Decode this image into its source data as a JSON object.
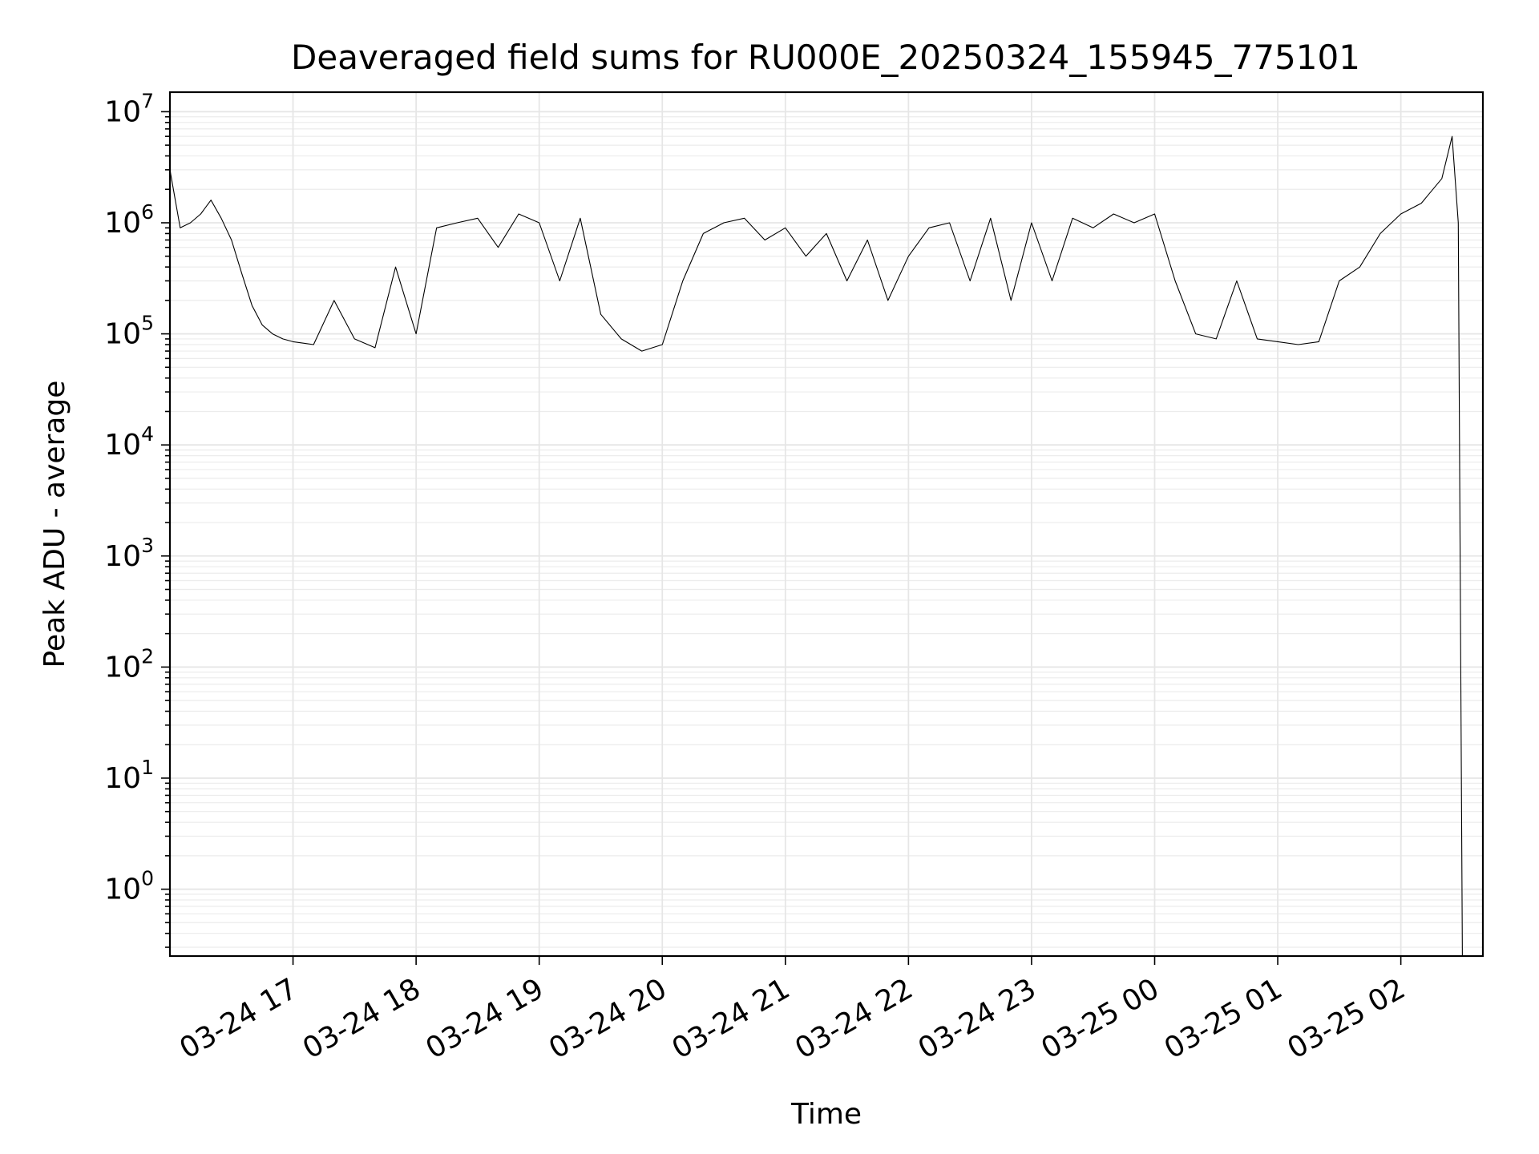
{
  "chart_data": {
    "type": "line",
    "title": "Deaveraged field sums for RU000E_20250324_155945_775101",
    "xlabel": "Time",
    "ylabel": "Peak ADU - average",
    "yscale": "log",
    "ylim": [
      0.25,
      15000000
    ],
    "xlim": [
      "2025-03-24 16:00",
      "2025-03-25 02:40"
    ],
    "grid": true,
    "grid_minor": true,
    "x_ticks": [
      {
        "value": "2025-03-24 17:00",
        "label": "03-24 17"
      },
      {
        "value": "2025-03-24 18:00",
        "label": "03-24 18"
      },
      {
        "value": "2025-03-24 19:00",
        "label": "03-24 19"
      },
      {
        "value": "2025-03-24 20:00",
        "label": "03-24 20"
      },
      {
        "value": "2025-03-24 21:00",
        "label": "03-24 21"
      },
      {
        "value": "2025-03-24 22:00",
        "label": "03-24 22"
      },
      {
        "value": "2025-03-24 23:00",
        "label": "03-24 23"
      },
      {
        "value": "2025-03-25 00:00",
        "label": "03-25 00"
      },
      {
        "value": "2025-03-25 01:00",
        "label": "03-25 01"
      },
      {
        "value": "2025-03-25 02:00",
        "label": "03-25 02"
      }
    ],
    "y_ticks": [
      {
        "value": 1,
        "base": "10",
        "exp": "0"
      },
      {
        "value": 10,
        "base": "10",
        "exp": "1"
      },
      {
        "value": 100,
        "base": "10",
        "exp": "2"
      },
      {
        "value": 1000,
        "base": "10",
        "exp": "3"
      },
      {
        "value": 10000,
        "base": "10",
        "exp": "4"
      },
      {
        "value": 100000,
        "base": "10",
        "exp": "5"
      },
      {
        "value": 1000000,
        "base": "10",
        "exp": "6"
      },
      {
        "value": 10000000,
        "base": "10",
        "exp": "7"
      }
    ],
    "series": [
      {
        "color": "#000000",
        "x": [
          "2025-03-24 16:00",
          "2025-03-24 16:05",
          "2025-03-24 16:10",
          "2025-03-24 16:15",
          "2025-03-24 16:20",
          "2025-03-24 16:25",
          "2025-03-24 16:30",
          "2025-03-24 16:35",
          "2025-03-24 16:40",
          "2025-03-24 16:45",
          "2025-03-24 16:50",
          "2025-03-24 16:55",
          "2025-03-24 17:00",
          "2025-03-24 17:10",
          "2025-03-24 17:20",
          "2025-03-24 17:30",
          "2025-03-24 17:40",
          "2025-03-24 17:50",
          "2025-03-24 18:00",
          "2025-03-24 18:10",
          "2025-03-24 18:20",
          "2025-03-24 18:30",
          "2025-03-24 18:40",
          "2025-03-24 18:50",
          "2025-03-24 19:00",
          "2025-03-24 19:10",
          "2025-03-24 19:20",
          "2025-03-24 19:30",
          "2025-03-24 19:40",
          "2025-03-24 19:50",
          "2025-03-24 20:00",
          "2025-03-24 20:10",
          "2025-03-24 20:20",
          "2025-03-24 20:30",
          "2025-03-24 20:40",
          "2025-03-24 20:50",
          "2025-03-24 21:00",
          "2025-03-24 21:10",
          "2025-03-24 21:20",
          "2025-03-24 21:30",
          "2025-03-24 21:40",
          "2025-03-24 21:50",
          "2025-03-24 22:00",
          "2025-03-24 22:10",
          "2025-03-24 22:20",
          "2025-03-24 22:30",
          "2025-03-24 22:40",
          "2025-03-24 22:50",
          "2025-03-24 23:00",
          "2025-03-24 23:10",
          "2025-03-24 23:20",
          "2025-03-24 23:30",
          "2025-03-24 23:40",
          "2025-03-24 23:50",
          "2025-03-25 00:00",
          "2025-03-25 00:10",
          "2025-03-25 00:20",
          "2025-03-25 00:30",
          "2025-03-25 00:40",
          "2025-03-25 00:50",
          "2025-03-25 01:00",
          "2025-03-25 01:10",
          "2025-03-25 01:20",
          "2025-03-25 01:30",
          "2025-03-25 01:40",
          "2025-03-25 01:50",
          "2025-03-25 02:00",
          "2025-03-25 02:10",
          "2025-03-25 02:20",
          "2025-03-25 02:25",
          "2025-03-25 02:28",
          "2025-03-25 02:30"
        ],
        "values": [
          3000000,
          900000,
          1000000,
          1200000,
          1600000,
          1100000,
          700000,
          350000,
          180000,
          120000,
          100000,
          90000,
          85000,
          80000,
          200000,
          90000,
          75000,
          400000,
          100000,
          900000,
          1000000,
          1100000,
          600000,
          1200000,
          1000000,
          300000,
          1100000,
          150000,
          90000,
          70000,
          80000,
          300000,
          800000,
          1000000,
          1100000,
          700000,
          900000,
          500000,
          800000,
          300000,
          700000,
          200000,
          500000,
          900000,
          1000000,
          300000,
          1100000,
          200000,
          1000000,
          300000,
          1100000,
          900000,
          1200000,
          1000000,
          1200000,
          300000,
          100000,
          90000,
          300000,
          90000,
          85000,
          80000,
          85000,
          300000,
          400000,
          800000,
          1200000,
          1500000,
          2500000,
          6000000,
          1000000,
          0.25
        ]
      }
    ]
  }
}
